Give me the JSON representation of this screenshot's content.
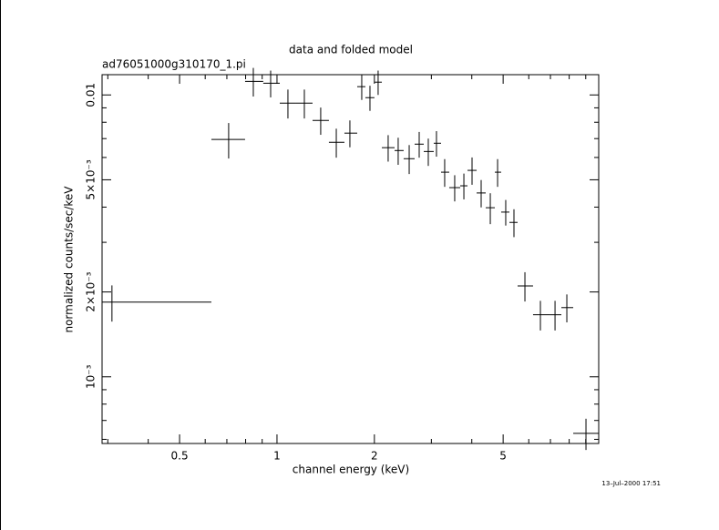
{
  "chart_data": {
    "type": "errorbar",
    "title": "data and folded model",
    "subtitle": "ad76051000g310170_1.pi",
    "x_label": "channel energy (keV)",
    "y_label": "normalized counts/sec/keV",
    "timestamp": "13–Jul–2000 17:51",
    "log_x": true,
    "log_y": true,
    "color": "#000000",
    "xlim": [
      0.288,
      9.87
    ],
    "ylim": [
      0.00058,
      0.0118
    ],
    "xticks": [
      0.5,
      1,
      2,
      5
    ],
    "xminorticks": [
      0.3,
      0.4,
      0.6,
      0.7,
      0.8,
      0.9,
      3,
      4,
      6,
      7,
      8,
      9
    ],
    "yticks": [
      0.01,
      {
        "value": 0.005,
        "label": "5×10⁻³"
      },
      {
        "value": 0.002,
        "label": "2×10⁻³"
      },
      {
        "value": 0.001,
        "label": "10⁻³"
      }
    ],
    "yminorticks": [
      0.0006,
      0.0007,
      0.0008,
      0.0009,
      0.003,
      0.004,
      0.006,
      0.007,
      0.008,
      0.009
    ],
    "x_lo": [
      0.288,
      0.627,
      0.797,
      0.907,
      1.02,
      1.146,
      1.288,
      1.447,
      1.616,
      1.77,
      1.876,
      2.001,
      2.109,
      2.309,
      2.463,
      2.663,
      2.842,
      3.051,
      3.214,
      3.407,
      3.684,
      3.88,
      4.14,
      4.417,
      4.713,
      4.93,
      5.228,
      5.542,
      6.186,
      6.955,
      7.566,
      8.233
    ],
    "x": [
      0.309,
      0.709,
      0.845,
      0.956,
      1.081,
      1.215,
      1.365,
      1.525,
      1.68,
      1.828,
      1.938,
      2.054,
      2.206,
      2.369,
      2.562,
      2.751,
      2.935,
      3.111,
      3.298,
      3.542,
      3.781,
      4.007,
      4.276,
      4.563,
      4.806,
      5.093,
      5.4,
      5.838,
      6.518,
      7.233,
      7.867,
      9.015
    ],
    "x_hi": [
      0.627,
      0.797,
      0.907,
      1.02,
      1.146,
      1.288,
      1.447,
      1.616,
      1.77,
      1.876,
      2.001,
      2.109,
      2.309,
      2.463,
      2.663,
      2.842,
      3.051,
      3.214,
      3.407,
      3.684,
      3.88,
      4.14,
      4.417,
      4.713,
      4.93,
      5.228,
      5.542,
      6.186,
      6.955,
      7.566,
      8.233,
      9.87
    ],
    "values": [
      0.00184,
      0.00695,
      0.01117,
      0.011,
      0.00935,
      0.00935,
      0.00812,
      0.00679,
      0.00732,
      0.0107,
      0.00978,
      0.0111,
      0.0065,
      0.00635,
      0.00594,
      0.00669,
      0.0063,
      0.00674,
      0.00532,
      0.00469,
      0.00476,
      0.0054,
      0.00449,
      0.00398,
      0.00532,
      0.00384,
      0.00353,
      0.0021,
      0.00166,
      0.00166,
      0.00176,
      0.00063
    ],
    "yerr": [
      0.00027,
      0.001,
      0.0013,
      0.0012,
      0.0011,
      0.0011,
      0.0009,
      0.0008,
      0.0008,
      0.0011,
      0.001,
      0.0011,
      0.0007,
      0.0007,
      0.0007,
      0.0007,
      0.0007,
      0.0007,
      0.0006,
      0.0005,
      0.0005,
      0.0006,
      0.0005,
      0.0005,
      0.0006,
      0.0004,
      0.0004,
      0.00025,
      0.0002,
      0.0002,
      0.0002,
      8e-05
    ]
  }
}
